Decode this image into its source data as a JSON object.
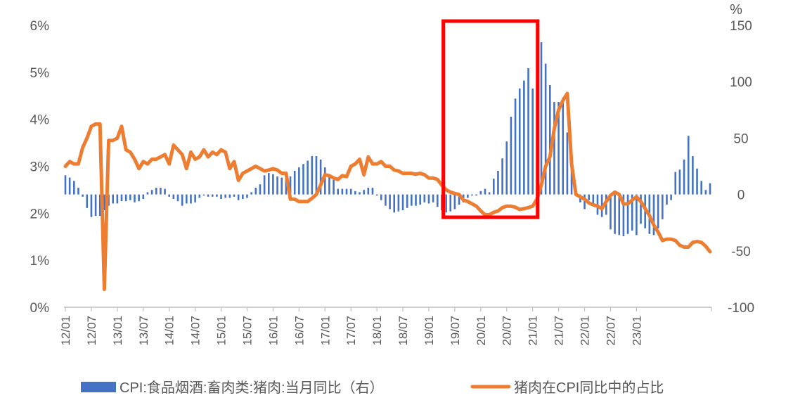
{
  "chart_data": {
    "type": "bar+line",
    "title": "",
    "left_axis": {
      "min": 0,
      "max": 6,
      "step": 1,
      "ticks": [
        "0%",
        "1%",
        "2%",
        "3%",
        "4%",
        "5%",
        "6%"
      ]
    },
    "right_axis": {
      "unit": "%",
      "min": -100,
      "max": 150,
      "step": 50,
      "ticks": [
        "-100",
        "-50",
        "0",
        "50",
        "100",
        "150"
      ]
    },
    "x_tick_labels": [
      "12/01",
      "12/07",
      "13/01",
      "13/07",
      "14/01",
      "14/07",
      "15/01",
      "15/07",
      "16/01",
      "16/07",
      "17/01",
      "17/07",
      "18/01",
      "18/07",
      "19/01",
      "19/07",
      "20/01",
      "20/07",
      "21/01",
      "21/07",
      "22/01",
      "22/07",
      "23/01"
    ],
    "start_month": "2012-01",
    "series": [
      {
        "name": "CPI:食品烟酒:畜肉类:猪肉:当月同比（右）",
        "type": "bar",
        "axis": "right",
        "color": "#4472C4",
        "values": [
          17,
          15,
          12,
          6,
          -2,
          -12,
          -20,
          -19,
          -19,
          -14,
          -10,
          -8,
          -8,
          -6,
          -6,
          -5,
          -7,
          -6,
          -4,
          2,
          4,
          6,
          6,
          5,
          -2,
          -4,
          -6,
          -10,
          -8,
          -8,
          -7,
          -3,
          -1,
          -2,
          -2,
          -2,
          -4,
          -3,
          -3,
          -2,
          -5,
          -4,
          -3,
          2,
          6,
          9,
          17,
          19,
          18,
          16,
          15,
          14,
          16,
          21,
          24,
          27,
          30,
          34,
          34,
          31,
          24,
          16,
          13,
          5,
          5,
          5,
          5,
          3,
          2,
          4,
          6,
          6,
          -1,
          -5,
          -10,
          -13,
          -16,
          -15,
          -14,
          -12,
          -10,
          -10,
          -9,
          -7,
          -8,
          -7,
          -11,
          -14,
          -16,
          -15,
          -13,
          -9,
          -7,
          -3,
          -1,
          -1,
          3,
          5,
          2,
          14,
          21,
          32,
          47,
          69,
          85,
          94,
          101,
          112,
          94,
          113,
          135,
          116,
          97,
          82,
          82,
          86,
          55,
          25,
          3,
          -7,
          -13,
          -5,
          -10,
          -18,
          -20,
          -18,
          -31,
          -35,
          -36,
          -37,
          -35,
          -32,
          -36,
          -26,
          -30,
          -35,
          -36,
          -30,
          -22,
          -9,
          -5,
          20,
          22,
          31,
          52,
          34,
          23,
          12,
          4,
          10
        ]
      },
      {
        "name": "猪肉在CPI同比中的占比",
        "type": "line",
        "axis": "left",
        "color": "#ED7D31",
        "values": [
          3.0,
          3.1,
          3.05,
          3.05,
          3.4,
          3.6,
          3.85,
          3.9,
          3.9,
          0.38,
          3.55,
          3.55,
          3.6,
          3.85,
          3.35,
          3.3,
          3.15,
          2.95,
          3.1,
          3.05,
          3.15,
          3.15,
          3.2,
          3.25,
          3.05,
          3.45,
          3.35,
          3.25,
          2.95,
          3.3,
          3.15,
          3.2,
          3.35,
          3.2,
          3.3,
          3.25,
          3.35,
          3.3,
          2.95,
          3.1,
          2.7,
          2.85,
          2.9,
          2.95,
          3.0,
          2.95,
          2.9,
          2.92,
          2.95,
          2.92,
          2.85,
          2.85,
          2.3,
          2.3,
          2.25,
          2.25,
          2.25,
          2.32,
          2.4,
          2.6,
          2.82,
          2.8,
          2.75,
          2.72,
          2.8,
          2.78,
          3.0,
          3.05,
          3.15,
          2.82,
          3.2,
          3.05,
          3.05,
          3.1,
          3.0,
          3.0,
          2.92,
          2.9,
          2.85,
          2.85,
          2.85,
          2.83,
          2.85,
          2.82,
          2.75,
          2.75,
          2.72,
          2.6,
          2.5,
          2.45,
          2.42,
          2.4,
          2.28,
          2.25,
          2.2,
          2.15,
          2.05,
          1.97,
          1.97,
          2.02,
          2.05,
          2.12,
          2.15,
          2.15,
          2.13,
          2.08,
          2.1,
          2.12,
          2.15,
          2.3,
          2.6,
          3.0,
          3.2,
          3.8,
          4.2,
          4.4,
          4.55,
          3.05,
          2.4,
          2.35,
          2.3,
          2.22,
          2.18,
          2.15,
          2.1,
          2.25,
          2.38,
          2.45,
          2.4,
          2.2,
          2.2,
          2.28,
          2.35,
          2.25,
          2.1,
          1.95,
          1.75,
          1.6,
          1.42,
          1.45,
          1.45,
          1.42,
          1.32,
          1.28,
          1.28,
          1.38,
          1.4,
          1.38,
          1.3,
          1.18
        ]
      }
    ],
    "annotation": {
      "type": "rect",
      "color": "#FF0000",
      "from": "2019-05",
      "to": "2021-01"
    },
    "legend_position": "bottom"
  },
  "legend": {
    "bar_label": "CPI:食品烟酒:畜肉类:猪肉:当月同比（右）",
    "line_label": "猪肉在CPI同比中的占比"
  }
}
